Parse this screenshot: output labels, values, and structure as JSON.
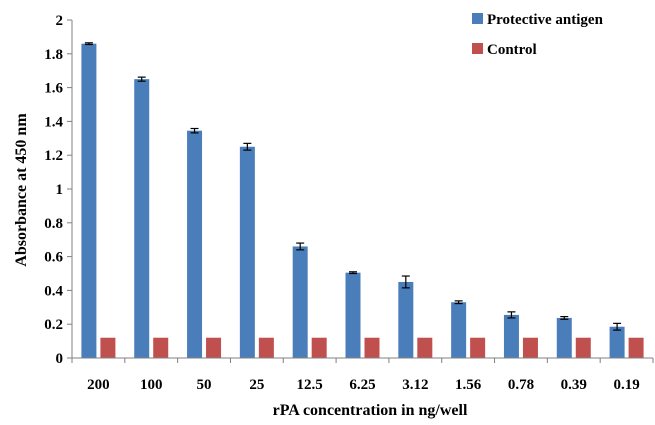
{
  "chart_data": {
    "type": "bar",
    "title": "",
    "xlabel": "rPA concentration in ng/well",
    "ylabel": "Absorbance at 450 nm",
    "categories": [
      "200",
      "100",
      "50",
      "25",
      "12.5",
      "6.25",
      "3.12",
      "1.56",
      "0.78",
      "0.39",
      "0.19"
    ],
    "ylim": [
      0,
      2
    ],
    "yticks": [
      "0",
      "0.2",
      "0.4",
      "0.6",
      "0.8",
      "1",
      "1.2",
      "1.4",
      "1.6",
      "1.8",
      "2"
    ],
    "grid": false,
    "legend_position": "top-right",
    "series": [
      {
        "name": "Protective antigen",
        "color": "#4a7ebb",
        "values": [
          1.86,
          1.65,
          1.345,
          1.25,
          0.66,
          0.505,
          0.45,
          0.33,
          0.255,
          0.237,
          0.185
        ],
        "errors": [
          0.005,
          0.012,
          0.013,
          0.02,
          0.02,
          0.005,
          0.035,
          0.008,
          0.018,
          0.008,
          0.02
        ]
      },
      {
        "name": "Control",
        "color": "#c0504d",
        "values": [
          0.12,
          0.12,
          0.12,
          0.12,
          0.12,
          0.12,
          0.12,
          0.12,
          0.12,
          0.12,
          0.12
        ]
      }
    ]
  }
}
